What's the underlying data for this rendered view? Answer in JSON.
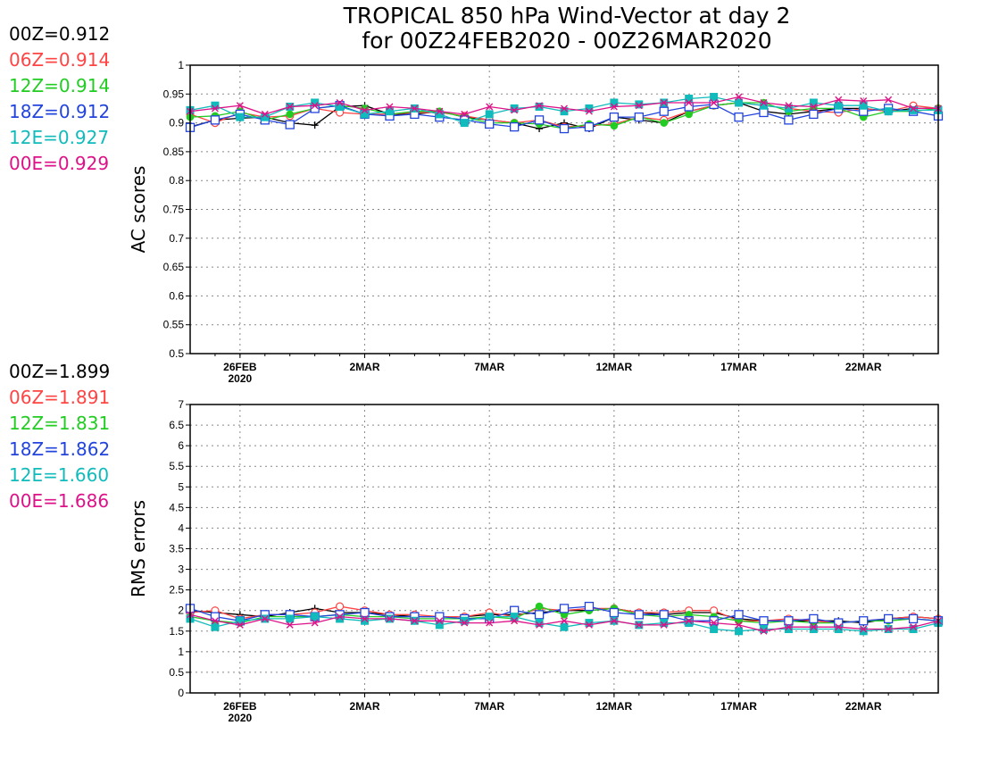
{
  "title_line1": "TROPICAL 850 hPa Wind-Vector at day 2",
  "title_line2": "for 00Z24FEB2020 - 00Z26MAR2020",
  "legend_ac": [
    {
      "text": "00Z=0.912",
      "color": "#000000"
    },
    {
      "text": "06Z=0.914",
      "color": "#ff4444"
    },
    {
      "text": "12Z=0.914",
      "color": "#22cc22"
    },
    {
      "text": "18Z=0.912",
      "color": "#2244dd"
    },
    {
      "text": "12E=0.927",
      "color": "#11bbbb"
    },
    {
      "text": "00E=0.929",
      "color": "#dd1188"
    }
  ],
  "legend_rms": [
    {
      "text": "00Z=1.899",
      "color": "#000000"
    },
    {
      "text": "06Z=1.891",
      "color": "#ff4444"
    },
    {
      "text": "12Z=1.831",
      "color": "#22cc22"
    },
    {
      "text": "18Z=1.862",
      "color": "#2244dd"
    },
    {
      "text": "12E=1.660",
      "color": "#11bbbb"
    },
    {
      "text": "00E=1.686",
      "color": "#dd1188"
    }
  ],
  "chart_data": [
    {
      "type": "line",
      "ylabel": "AC scores",
      "ylim": [
        0.5,
        1.0
      ],
      "yticks": [
        "0.5",
        "0.55",
        "0.6",
        "0.65",
        "0.7",
        "0.75",
        "0.8",
        "0.85",
        "0.9",
        "0.95",
        "1"
      ],
      "xlim": [
        0,
        30
      ],
      "xticks": [
        {
          "x": 2,
          "label": "26FEB",
          "sub": "2020"
        },
        {
          "x": 7,
          "label": "2MAR",
          "sub": ""
        },
        {
          "x": 12,
          "label": "7MAR",
          "sub": ""
        },
        {
          "x": 17,
          "label": "12MAR",
          "sub": ""
        },
        {
          "x": 22,
          "label": "17MAR",
          "sub": ""
        },
        {
          "x": 27,
          "label": "22MAR",
          "sub": ""
        }
      ],
      "grid": true,
      "series": [
        {
          "name": "00Z",
          "color": "#000000",
          "marker": "plus",
          "values": [
            0.893,
            0.905,
            0.908,
            0.91,
            0.9,
            0.896,
            0.928,
            0.93,
            0.915,
            0.915,
            0.92,
            0.91,
            0.905,
            0.9,
            0.89,
            0.9,
            0.89,
            0.91,
            0.905,
            0.9,
            0.92,
            0.93,
            0.935,
            0.92,
            0.915,
            0.92,
            0.925,
            0.925,
            0.92,
            0.925,
            0.925
          ]
        },
        {
          "name": "06Z",
          "color": "#ff4444",
          "marker": "circle",
          "values": [
            0.915,
            0.9,
            0.918,
            0.91,
            0.912,
            0.925,
            0.918,
            0.915,
            0.915,
            0.918,
            0.918,
            0.912,
            0.905,
            0.9,
            0.905,
            0.893,
            0.895,
            0.898,
            0.91,
            0.905,
            0.92,
            0.93,
            0.935,
            0.93,
            0.925,
            0.92,
            0.918,
            0.925,
            0.92,
            0.93,
            0.925
          ]
        },
        {
          "name": "12Z",
          "color": "#22cc22",
          "marker": "filledcircle",
          "values": [
            0.91,
            0.912,
            0.92,
            0.905,
            0.915,
            0.925,
            0.93,
            0.925,
            0.915,
            0.92,
            0.92,
            0.91,
            0.9,
            0.9,
            0.898,
            0.89,
            0.898,
            0.895,
            0.91,
            0.9,
            0.915,
            0.93,
            0.935,
            0.935,
            0.92,
            0.925,
            0.925,
            0.91,
            0.92,
            0.92,
            0.925
          ]
        },
        {
          "name": "18Z",
          "color": "#2244dd",
          "marker": "opensquare",
          "values": [
            0.892,
            0.905,
            0.915,
            0.905,
            0.897,
            0.925,
            0.93,
            0.915,
            0.912,
            0.915,
            0.91,
            0.905,
            0.898,
            0.893,
            0.905,
            0.89,
            0.893,
            0.91,
            0.91,
            0.92,
            0.928,
            0.932,
            0.91,
            0.918,
            0.905,
            0.915,
            0.925,
            0.92,
            0.925,
            0.92,
            0.912
          ]
        },
        {
          "name": "12E",
          "color": "#11bbbb",
          "marker": "filledsquare",
          "values": [
            0.922,
            0.93,
            0.91,
            0.91,
            0.928,
            0.935,
            0.928,
            0.915,
            0.92,
            0.925,
            0.915,
            0.9,
            0.915,
            0.925,
            0.928,
            0.92,
            0.925,
            0.935,
            0.932,
            0.935,
            0.942,
            0.945,
            0.935,
            0.93,
            0.925,
            0.935,
            0.93,
            0.93,
            0.92,
            0.922,
            0.922
          ]
        },
        {
          "name": "00E",
          "color": "#dd1188",
          "marker": "x",
          "values": [
            0.92,
            0.925,
            0.93,
            0.915,
            0.928,
            0.93,
            0.935,
            0.922,
            0.928,
            0.925,
            0.92,
            0.915,
            0.928,
            0.922,
            0.93,
            0.925,
            0.92,
            0.928,
            0.93,
            0.935,
            0.935,
            0.935,
            0.945,
            0.935,
            0.93,
            0.928,
            0.94,
            0.938,
            0.94,
            0.925,
            0.925
          ]
        }
      ]
    },
    {
      "type": "line",
      "ylabel": "RMS errors",
      "ylim": [
        0,
        7
      ],
      "yticks": [
        "0",
        "0.5",
        "1",
        "1.5",
        "2",
        "2.5",
        "3",
        "3.5",
        "4",
        "4.5",
        "5",
        "5.5",
        "6",
        "6.5",
        "7"
      ],
      "xlim": [
        0,
        30
      ],
      "xticks": [
        {
          "x": 2,
          "label": "26FEB",
          "sub": "2020"
        },
        {
          "x": 7,
          "label": "2MAR",
          "sub": ""
        },
        {
          "x": 12,
          "label": "7MAR",
          "sub": ""
        },
        {
          "x": 17,
          "label": "12MAR",
          "sub": ""
        },
        {
          "x": 22,
          "label": "17MAR",
          "sub": ""
        },
        {
          "x": 27,
          "label": "22MAR",
          "sub": ""
        }
      ],
      "grid": true,
      "series": [
        {
          "name": "00Z",
          "color": "#000000",
          "marker": "plus",
          "values": [
            2.0,
            1.95,
            1.9,
            1.85,
            1.95,
            2.05,
            1.95,
            1.95,
            1.9,
            1.85,
            1.85,
            1.85,
            1.9,
            1.9,
            1.95,
            2.0,
            2.0,
            2.05,
            1.95,
            1.9,
            1.95,
            1.95,
            1.8,
            1.75,
            1.75,
            1.75,
            1.75,
            1.7,
            1.8,
            1.85,
            1.8
          ]
        },
        {
          "name": "06Z",
          "color": "#ff4444",
          "marker": "circle",
          "values": [
            1.95,
            2.0,
            1.8,
            1.9,
            1.9,
            1.95,
            2.1,
            2.0,
            1.9,
            1.9,
            1.85,
            1.85,
            1.95,
            1.85,
            2.05,
            2.0,
            2.05,
            2.05,
            1.95,
            1.95,
            2.0,
            2.0,
            1.75,
            1.75,
            1.8,
            1.75,
            1.7,
            1.75,
            1.8,
            1.85,
            1.8
          ]
        },
        {
          "name": "12Z",
          "color": "#22cc22",
          "marker": "filledcircle",
          "values": [
            1.85,
            1.75,
            1.7,
            1.85,
            1.85,
            1.85,
            1.9,
            1.85,
            1.85,
            1.8,
            1.8,
            1.8,
            1.85,
            1.8,
            2.1,
            1.9,
            2.0,
            2.05,
            1.9,
            1.85,
            1.9,
            1.85,
            1.75,
            1.7,
            1.75,
            1.7,
            1.7,
            1.75,
            1.75,
            1.8,
            1.75
          ]
        },
        {
          "name": "18Z",
          "color": "#2244dd",
          "marker": "opensquare",
          "values": [
            2.05,
            1.85,
            1.75,
            1.9,
            1.9,
            1.85,
            1.9,
            1.95,
            1.85,
            1.85,
            1.85,
            1.8,
            1.8,
            2.0,
            1.9,
            2.05,
            2.1,
            1.95,
            1.9,
            1.9,
            1.75,
            1.75,
            1.9,
            1.75,
            1.75,
            1.8,
            1.7,
            1.75,
            1.8,
            1.8,
            1.75
          ]
        },
        {
          "name": "12E",
          "color": "#11bbbb",
          "marker": "filledsquare",
          "values": [
            1.8,
            1.6,
            1.75,
            1.8,
            1.8,
            1.85,
            1.8,
            1.75,
            1.8,
            1.75,
            1.65,
            1.75,
            1.85,
            1.85,
            1.7,
            1.6,
            1.7,
            1.75,
            1.65,
            1.7,
            1.7,
            1.55,
            1.5,
            1.55,
            1.55,
            1.55,
            1.55,
            1.5,
            1.55,
            1.55,
            1.7
          ]
        },
        {
          "name": "00E",
          "color": "#dd1188",
          "marker": "x",
          "values": [
            1.9,
            1.75,
            1.65,
            1.8,
            1.65,
            1.7,
            1.85,
            1.8,
            1.8,
            1.75,
            1.75,
            1.7,
            1.7,
            1.75,
            1.65,
            1.75,
            1.65,
            1.75,
            1.65,
            1.65,
            1.75,
            1.7,
            1.65,
            1.5,
            1.6,
            1.6,
            1.6,
            1.55,
            1.55,
            1.6,
            1.75
          ]
        }
      ]
    }
  ]
}
